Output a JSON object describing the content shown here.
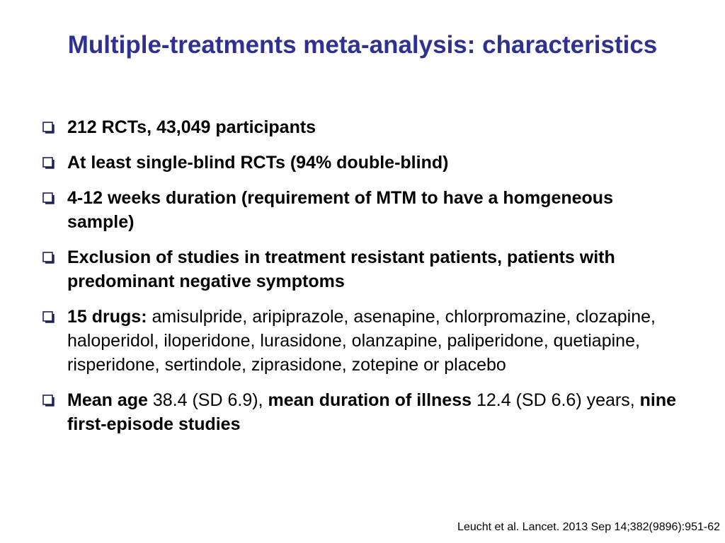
{
  "title": "Multiple-treatments meta-analysis: characteristics",
  "bullet_icon": "hollow-square-bullet-icon",
  "colors": {
    "title": "#2e3192",
    "text": "#000000",
    "bullet_icon": "#1f1f5c"
  },
  "bullets": [
    {
      "text": "212 RCTs, 43,049 participants"
    },
    {
      "text": "At least single-blind RCTs (94% double-blind)"
    },
    {
      "text": "4-12 weeks duration (requirement of MTM to have a homgeneous sample)"
    },
    {
      "text": "Exclusion of studies in treatment resistant patients, patients with predominant negative symptoms"
    },
    {
      "label": "15 drugs:",
      "text": " amisulpride, aripiprazole, asenapine, chlorpromazine, clozapine, haloperidol, iloperidone, lurasidone, olanzapine, paliperidone, quetiapine, risperidone, sertindole, ziprasidone, zotepine or placebo"
    },
    {
      "age_label": "Mean age",
      "age_value": " 38.4 (SD 6.9),",
      "duration_label": " mean duration of illness",
      "duration_value": " 12.4 (SD 6.6) years,",
      "studies_label": " nine first-episode studies"
    }
  ],
  "citation": "Leucht et al. Lancet. 2013 Sep 14;382(9896):951-62"
}
